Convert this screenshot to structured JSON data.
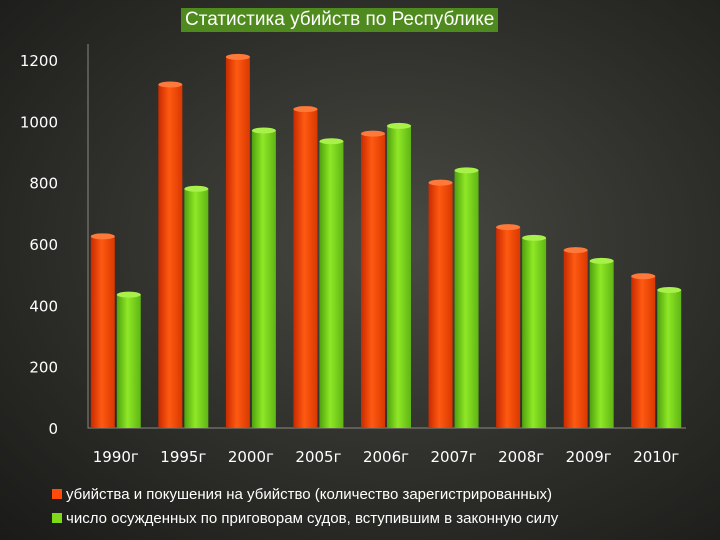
{
  "chart_data": {
    "type": "bar",
    "title": "Статистика убийств по Республике",
    "categories": [
      "1990г",
      "1995г",
      "2000г",
      "2005г",
      "2006г",
      "2007г",
      "2008г",
      "2009г",
      "2010г"
    ],
    "series": [
      {
        "name": "убийства и покушения на убийство (количество зарегистрированных)",
        "color": "#ff4a0a",
        "values": [
          625,
          1120,
          1210,
          1040,
          960,
          800,
          655,
          580,
          495
        ]
      },
      {
        "name": "число осужденных по приговорам судов, вступившим в законную силу",
        "color": "#7fd91a",
        "values": [
          435,
          780,
          970,
          935,
          985,
          840,
          620,
          545,
          450
        ]
      }
    ],
    "yticks": [
      0,
      200,
      400,
      600,
      800,
      1000,
      1200
    ],
    "ylim": [
      0,
      1200
    ],
    "grid": false,
    "legend_position": "bottom"
  }
}
